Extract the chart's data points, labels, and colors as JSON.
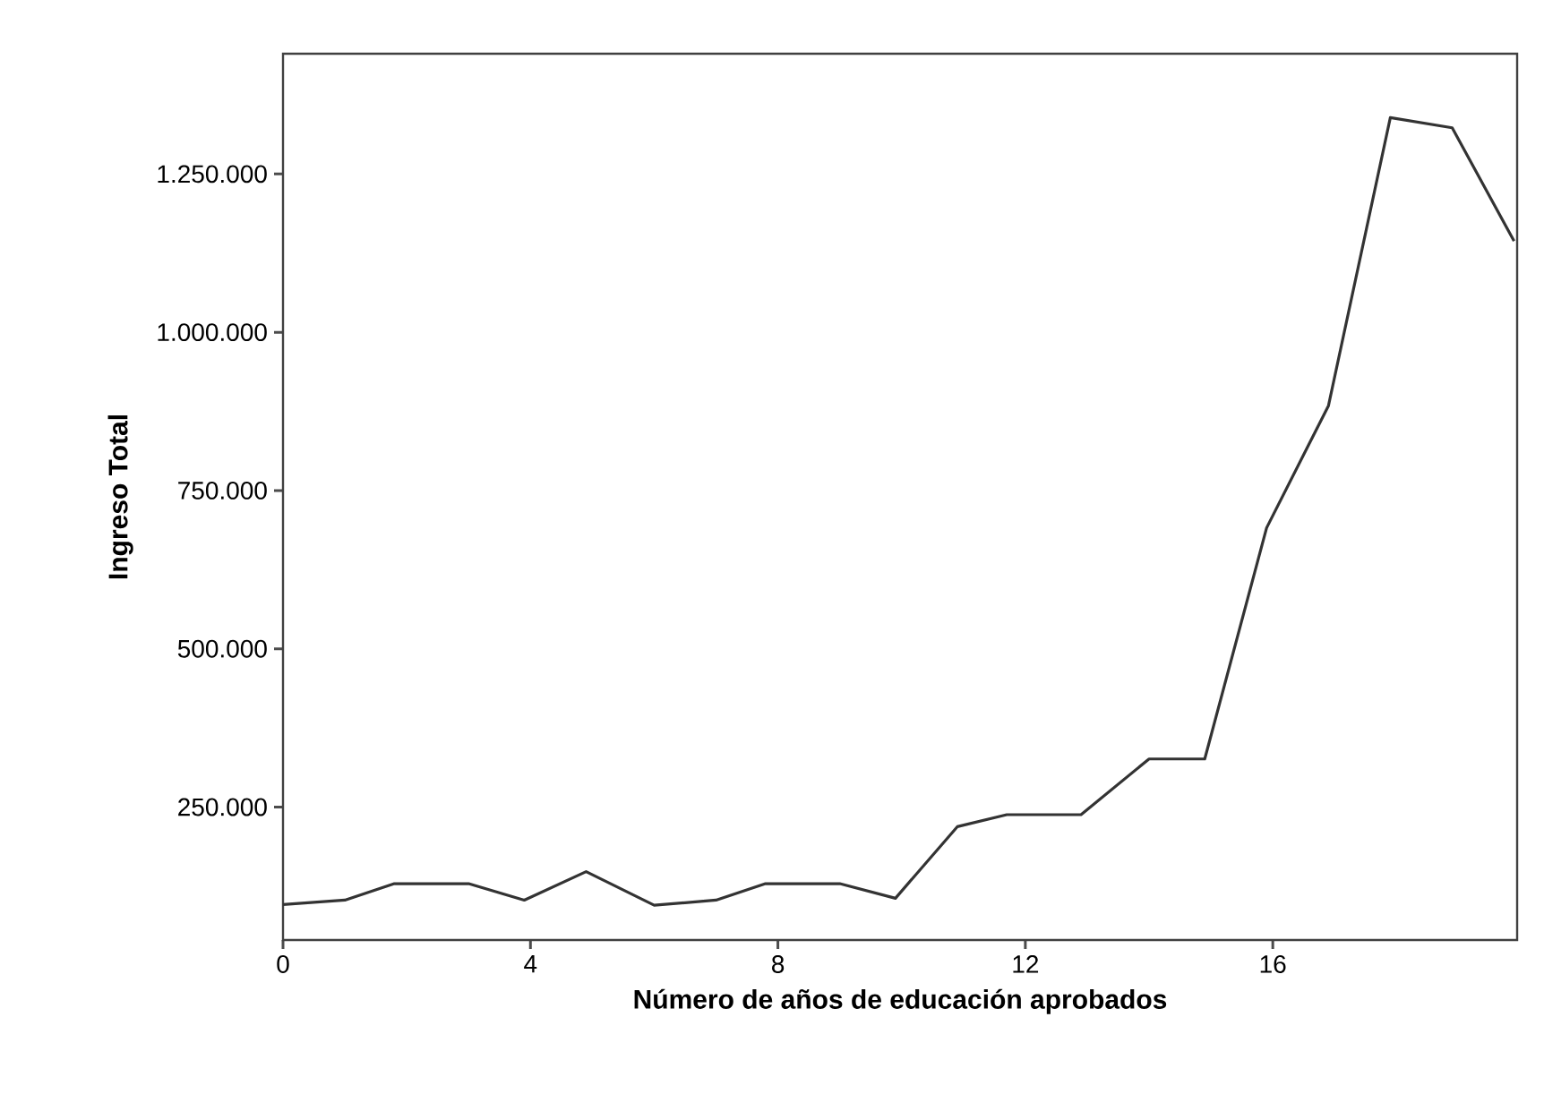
{
  "chart_data": {
    "type": "line",
    "xlabel": "Número de años de educación aprobados",
    "ylabel": "Ingreso Total",
    "x": [
      0,
      1.0,
      1.8,
      3.0,
      3.9,
      4.9,
      6.0,
      7.0,
      7.8,
      9.0,
      9.9,
      10.9,
      11.7,
      12.9,
      14.0,
      14.9,
      15.9,
      16.9,
      17.9,
      18.9,
      19.9
    ],
    "series": [
      {
        "color": "#333333",
        "values": [
          96000,
          103000,
          129000,
          129000,
          103000,
          148000,
          95000,
          103000,
          129000,
          129000,
          106000,
          219000,
          238000,
          238000,
          326000,
          326000,
          691000,
          884000,
          1339000,
          1323000,
          1144000
        ]
      }
    ],
    "xlim": [
      0,
      19.95
    ],
    "xticks": [
      0,
      4,
      8,
      12,
      16
    ],
    "ylim": [
      40000,
      1440000
    ],
    "yticks": [
      {
        "value": 250000,
        "label": "250.000"
      },
      {
        "value": 500000,
        "label": "500.000"
      },
      {
        "value": 750000,
        "label": "750.000"
      },
      {
        "value": 1000000,
        "label": "1.000.000"
      },
      {
        "value": 1250000,
        "label": "1.250.000"
      }
    ],
    "grid": false,
    "legend": false,
    "marker": "none",
    "line_style": "solid"
  }
}
